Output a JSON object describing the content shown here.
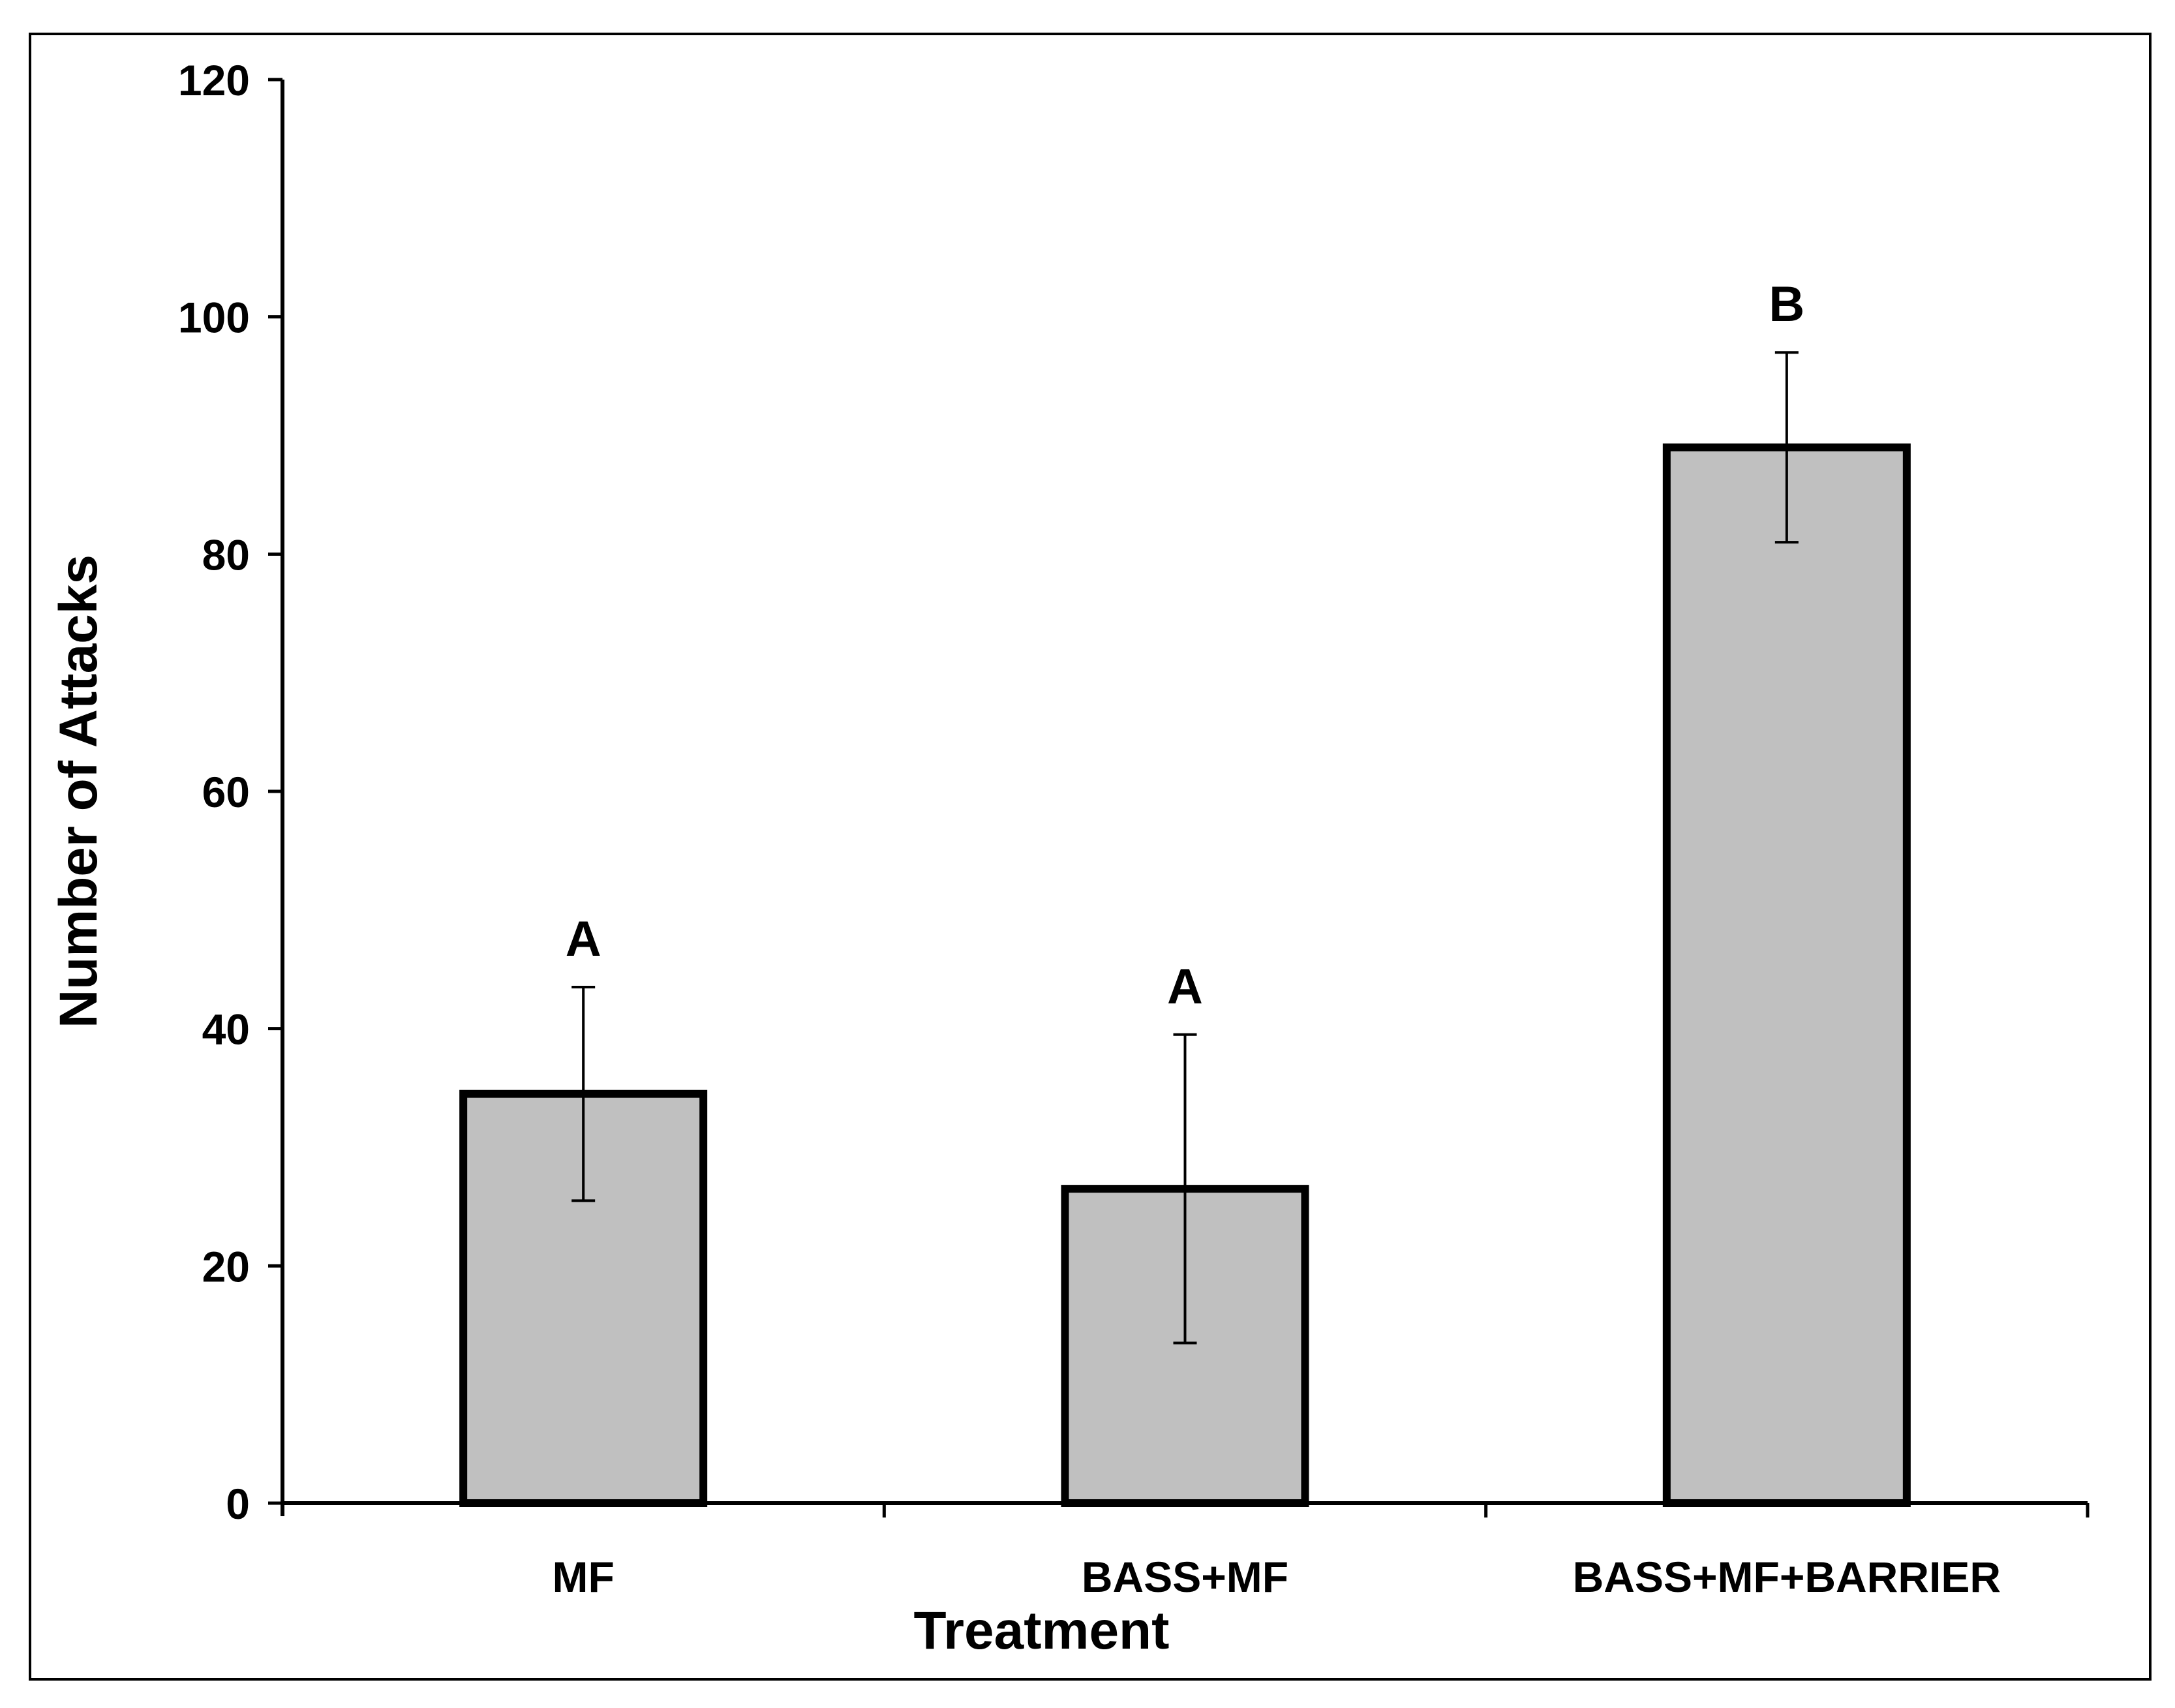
{
  "chart_data": {
    "type": "bar",
    "title": "",
    "xlabel": "Treatment",
    "ylabel": "Number of Attacks",
    "categories": [
      "MF",
      "BASS+MF",
      "BASS+MF+BARRIER"
    ],
    "values": [
      34.5,
      26.5,
      89
    ],
    "error_upper": [
      43.5,
      39.5,
      97
    ],
    "error_lower": [
      25.5,
      13.5,
      81
    ],
    "significance_letters": [
      "A",
      "A",
      "B"
    ],
    "ylim": [
      0,
      120
    ],
    "yticks": [
      "0",
      "20",
      "40",
      "60",
      "80",
      "100",
      "120"
    ],
    "grid": false,
    "legend": "none",
    "colors": {
      "bar_fill": "#c0c0c0",
      "bar_stroke": "#000000",
      "axis": "#000000"
    }
  }
}
